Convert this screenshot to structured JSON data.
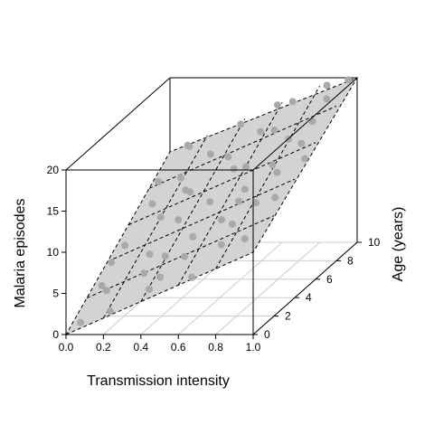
{
  "chart_data": {
    "type": "scatter3d",
    "title": "",
    "xlabel": "Transmission intensity",
    "ylabel": "Age (years)",
    "zlabel": "Malaria episodes",
    "xlim": [
      0,
      1
    ],
    "ylim": [
      0,
      10
    ],
    "zlim": [
      0,
      20
    ],
    "x_ticks": [
      "0.0",
      "0.2",
      "0.4",
      "0.6",
      "0.8",
      "1.0"
    ],
    "y_ticks": [
      "0",
      "2",
      "4",
      "6",
      "8",
      "10"
    ],
    "z_ticks": [
      "0",
      "5",
      "10",
      "15",
      "20"
    ],
    "plane": {
      "intercept": 0,
      "x_coef": 10,
      "y_coef": 1.1
    },
    "point_color": "#a9a9a9",
    "plane_color": "#d3d3d3",
    "points": [
      {
        "x": 0.05,
        "y": 0.5,
        "z": 0.9
      },
      {
        "x": 0.15,
        "y": 1.2,
        "z": 4.0
      },
      {
        "x": 0.22,
        "y": 0.3,
        "z": 2.5
      },
      {
        "x": 0.3,
        "y": 2.1,
        "z": 5.1
      },
      {
        "x": 0.12,
        "y": 3.5,
        "z": 6.9
      },
      {
        "x": 0.4,
        "y": 0.8,
        "z": 4.6
      },
      {
        "x": 0.55,
        "y": 1.5,
        "z": 7.8
      },
      {
        "x": 0.65,
        "y": 0.4,
        "z": 6.5
      },
      {
        "x": 0.75,
        "y": 2.5,
        "z": 10.6
      },
      {
        "x": 0.9,
        "y": 1.0,
        "z": 10.5
      },
      {
        "x": 0.95,
        "y": 3.0,
        "z": 13.3
      },
      {
        "x": 0.85,
        "y": 5.0,
        "z": 14.1
      },
      {
        "x": 0.7,
        "y": 4.0,
        "z": 11.7
      },
      {
        "x": 0.5,
        "y": 3.2,
        "z": 8.3
      },
      {
        "x": 0.35,
        "y": 4.5,
        "z": 8.9
      },
      {
        "x": 0.2,
        "y": 5.5,
        "z": 8.1
      },
      {
        "x": 0.1,
        "y": 6.5,
        "z": 8.6
      },
      {
        "x": 0.05,
        "y": 8.0,
        "z": 9.6
      },
      {
        "x": 0.15,
        "y": 9.0,
        "z": 12.9
      },
      {
        "x": 0.3,
        "y": 8.5,
        "z": 12.4
      },
      {
        "x": 0.45,
        "y": 7.5,
        "z": 13.2
      },
      {
        "x": 0.6,
        "y": 6.5,
        "z": 13.1
      },
      {
        "x": 0.8,
        "y": 7.0,
        "z": 15.9
      },
      {
        "x": 0.92,
        "y": 8.5,
        "z": 19.1
      },
      {
        "x": 0.98,
        "y": 9.5,
        "z": 20.3
      },
      {
        "x": 0.85,
        "y": 9.8,
        "z": 19.3
      },
      {
        "x": 0.7,
        "y": 9.2,
        "z": 18.0
      },
      {
        "x": 0.55,
        "y": 8.8,
        "z": 14.8
      },
      {
        "x": 0.4,
        "y": 9.6,
        "z": 14.8
      },
      {
        "x": 0.25,
        "y": 7.0,
        "z": 9.7
      },
      {
        "x": 0.33,
        "y": 6.0,
        "z": 10.6
      },
      {
        "x": 0.48,
        "y": 5.2,
        "z": 10.3
      },
      {
        "x": 0.62,
        "y": 3.8,
        "z": 9.7
      },
      {
        "x": 0.78,
        "y": 5.8,
        "z": 14.1
      },
      {
        "x": 0.88,
        "y": 6.8,
        "z": 15.6
      },
      {
        "x": 0.02,
        "y": 4.0,
        "z": 4.3
      },
      {
        "x": 0.08,
        "y": 2.0,
        "z": 3.7
      },
      {
        "x": 0.18,
        "y": 7.8,
        "z": 10.3
      },
      {
        "x": 0.28,
        "y": 3.0,
        "z": 6.4
      },
      {
        "x": 0.38,
        "y": 2.7,
        "z": 6.5
      },
      {
        "x": 0.52,
        "y": 6.8,
        "z": 12.5
      },
      {
        "x": 0.68,
        "y": 7.8,
        "z": 16.1
      },
      {
        "x": 0.73,
        "y": 1.8,
        "z": 8.9
      },
      {
        "x": 0.82,
        "y": 3.5,
        "z": 12.1
      },
      {
        "x": 0.97,
        "y": 5.5,
        "z": 15.2
      },
      {
        "x": 0.58,
        "y": 9.9,
        "z": 16.8
      },
      {
        "x": 0.42,
        "y": 1.5,
        "z": 5.3
      },
      {
        "x": 0.12,
        "y": 9.7,
        "z": 12.0
      },
      {
        "x": 0.65,
        "y": 5.5,
        "z": 11.5
      },
      {
        "x": 0.9,
        "y": 7.5,
        "z": 17.5
      }
    ]
  }
}
